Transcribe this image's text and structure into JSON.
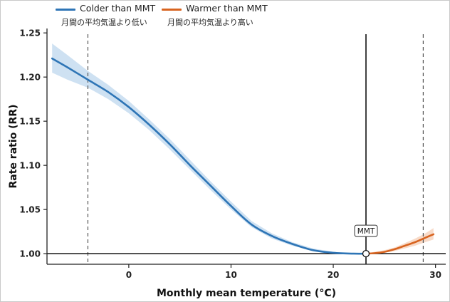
{
  "legend": {
    "colder": {
      "label": "Colder than MMT",
      "sublabel": "月間の平均気温より低い",
      "color": "#2e75b6"
    },
    "warmer": {
      "label": "Warmer than MMT",
      "sublabel": "月間の平均気温より高い",
      "color": "#d86420"
    }
  },
  "chart_data": {
    "type": "line",
    "title": "",
    "xlabel": "Monthly mean temperature (°C)",
    "ylabel": "Rate ratio (RR)",
    "xlim": [
      -8,
      31
    ],
    "ylim": [
      0.988,
      1.255
    ],
    "xticks": [
      0,
      10,
      20,
      30
    ],
    "yticks": [
      1.0,
      1.05,
      1.1,
      1.15,
      1.2,
      1.25
    ],
    "xtick_labels": [
      "0",
      "10",
      "20",
      "30"
    ],
    "ytick_labels": [
      "1.00",
      "1.05",
      "1.10",
      "1.15",
      "1.20",
      "1.25"
    ],
    "reference_lines": {
      "y": 1.0,
      "mmt_x": 23.2,
      "percentile_x": [
        -4.0,
        28.8
      ]
    },
    "annotation": "MMT",
    "band_color": "#c6dcf0",
    "warm_band_color": "#f7d5bf",
    "series": [
      {
        "key": "colder",
        "x": [
          -7.5,
          -6.0,
          -4.0,
          -2.0,
          0.0,
          2.0,
          4.0,
          6.0,
          8.0,
          10.0,
          12.0,
          14.0,
          16.0,
          18.0,
          20.0,
          22.0,
          23.2
        ],
        "y": [
          1.221,
          1.211,
          1.197,
          1.183,
          1.166,
          1.146,
          1.124,
          1.1,
          1.077,
          1.054,
          1.033,
          1.02,
          1.011,
          1.004,
          1.001,
          1.0,
          1.0
        ],
        "lower": [
          1.205,
          1.197,
          1.188,
          1.175,
          1.159,
          1.14,
          1.118,
          1.095,
          1.072,
          1.05,
          1.03,
          1.017,
          1.009,
          1.003,
          1.0,
          1.0,
          1.0
        ],
        "upper": [
          1.238,
          1.225,
          1.207,
          1.191,
          1.173,
          1.152,
          1.13,
          1.106,
          1.082,
          1.059,
          1.037,
          1.023,
          1.013,
          1.006,
          1.002,
          1.0,
          1.0
        ]
      },
      {
        "key": "warmer",
        "x": [
          23.2,
          24.0,
          25.0,
          26.0,
          27.0,
          28.0,
          29.0,
          29.8
        ],
        "y": [
          1.0,
          1.0005,
          1.002,
          1.005,
          1.009,
          1.013,
          1.018,
          1.022
        ],
        "lower": [
          1.0,
          1.0,
          1.001,
          1.003,
          1.006,
          1.009,
          1.013,
          1.016
        ],
        "upper": [
          1.0,
          1.002,
          1.004,
          1.007,
          1.012,
          1.017,
          1.023,
          1.029
        ]
      }
    ]
  }
}
